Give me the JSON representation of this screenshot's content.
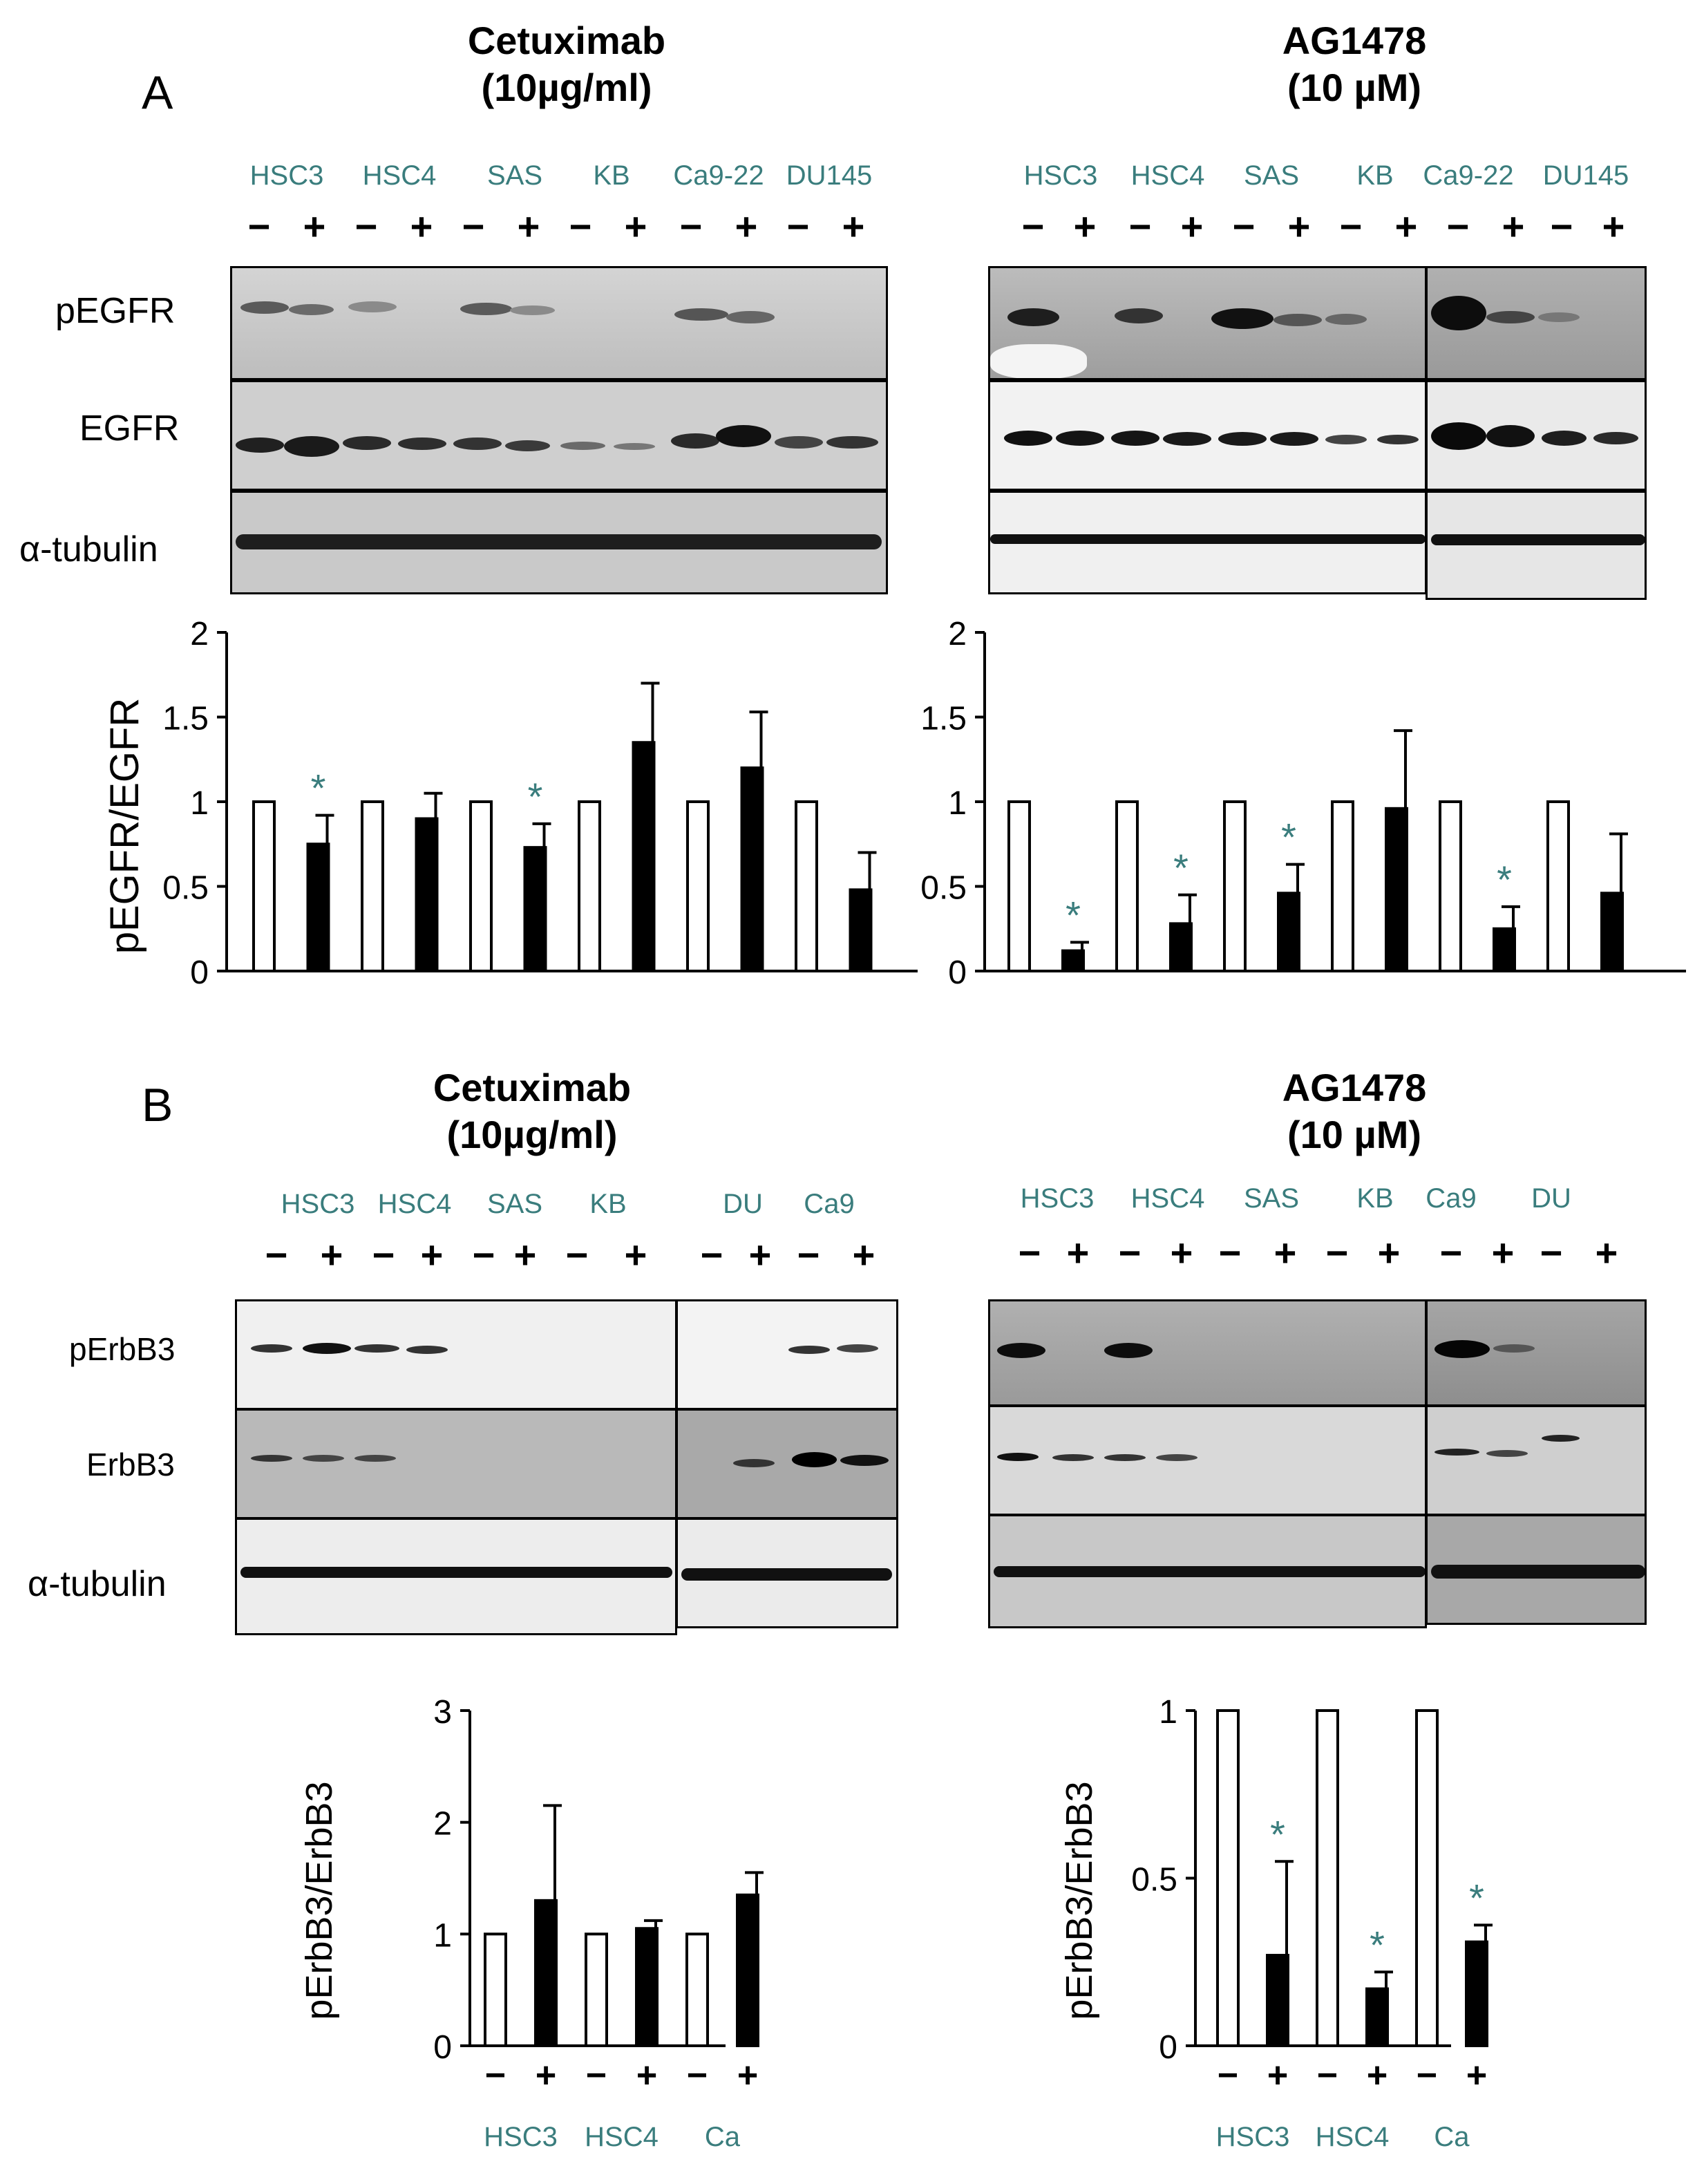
{
  "panelA": {
    "letter": "A",
    "left": {
      "title1": "Cetuximab",
      "title2": "(10µg/ml)",
      "lanes": [
        "HSC3",
        "HSC4",
        "SAS",
        "KB",
        "Ca9-22",
        "DU145"
      ],
      "blots": [
        "pEGFR",
        "EGFR",
        "α-tubulin"
      ]
    },
    "right": {
      "title1": "AG1478",
      "title2": "(10 µM)",
      "lanes": [
        "HSC3",
        "HSC4",
        "SAS",
        "KB",
        "Ca9-22",
        "DU145"
      ]
    }
  },
  "panelB": {
    "letter": "B",
    "left": {
      "title1": "Cetuximab",
      "title2": "(10µg/ml)",
      "lanes": [
        "HSC3",
        "HSC4",
        "SAS",
        "KB",
        "DU",
        "Ca9"
      ],
      "blots": [
        "pErbB3",
        "ErbB3",
        "α-tubulin"
      ]
    },
    "right": {
      "title1": "AG1478",
      "title2": "(10 µM)",
      "lanes": [
        "HSC3",
        "HSC4",
        "SAS",
        "KB",
        "Ca9",
        "DU"
      ]
    }
  },
  "signs": {
    "minus": "−",
    "plus": "+"
  },
  "chart_data": [
    {
      "type": "bar",
      "panel": "A-Cetuximab",
      "ylabel": "pEGFR/EGFR",
      "ylim": [
        0,
        2
      ],
      "yticks": [
        "0",
        "0.5",
        "1",
        "1.5",
        "2"
      ],
      "bars": [
        {
          "value": 1.0,
          "fill": "white"
        },
        {
          "value": 0.75,
          "fill": "black",
          "err": 0.17,
          "star": "*"
        },
        {
          "value": 1.0,
          "fill": "white"
        },
        {
          "value": 0.9,
          "fill": "black",
          "err": 0.15
        },
        {
          "value": 1.0,
          "fill": "white"
        },
        {
          "value": 0.73,
          "fill": "black",
          "err": 0.14,
          "star": "*"
        },
        {
          "value": 1.0,
          "fill": "white"
        },
        {
          "value": 1.35,
          "fill": "black",
          "err": 0.35
        },
        {
          "value": 1.0,
          "fill": "white"
        },
        {
          "value": 1.2,
          "fill": "black",
          "err": 0.33
        },
        {
          "value": 1.0,
          "fill": "white"
        },
        {
          "value": 0.48,
          "fill": "black",
          "err": 0.22
        }
      ]
    },
    {
      "type": "bar",
      "panel": "A-AG1478",
      "ylim": [
        0,
        2
      ],
      "yticks": [
        "0",
        "0.5",
        "1",
        "1.5",
        "2"
      ],
      "bars": [
        {
          "value": 1.0,
          "fill": "white"
        },
        {
          "value": 0.12,
          "fill": "black",
          "err": 0.05,
          "star": "*"
        },
        {
          "value": 1.0,
          "fill": "white"
        },
        {
          "value": 0.28,
          "fill": "black",
          "err": 0.17,
          "star": "*"
        },
        {
          "value": 1.0,
          "fill": "white"
        },
        {
          "value": 0.46,
          "fill": "black",
          "err": 0.17,
          "star": "*"
        },
        {
          "value": 1.0,
          "fill": "white"
        },
        {
          "value": 0.96,
          "fill": "black",
          "err": 0.46
        },
        {
          "value": 1.0,
          "fill": "white"
        },
        {
          "value": 0.25,
          "fill": "black",
          "err": 0.13,
          "star": "*"
        },
        {
          "value": 1.0,
          "fill": "white"
        },
        {
          "value": 0.46,
          "fill": "black",
          "err": 0.35
        }
      ]
    },
    {
      "type": "bar",
      "panel": "B-Cetuximab",
      "ylabel": "pErbB3/ErbB3",
      "ylim": [
        0,
        3
      ],
      "yticks": [
        "0",
        "1",
        "2",
        "3"
      ],
      "categories": [
        "HSC3",
        "HSC4",
        "Ca"
      ],
      "bars": [
        {
          "value": 1.0,
          "fill": "white"
        },
        {
          "value": 1.3,
          "fill": "black",
          "err": 0.85
        },
        {
          "value": 1.0,
          "fill": "white"
        },
        {
          "value": 1.05,
          "fill": "black",
          "err": 0.07
        },
        {
          "value": 1.0,
          "fill": "white"
        },
        {
          "value": 1.35,
          "fill": "black",
          "err": 0.2
        }
      ]
    },
    {
      "type": "bar",
      "panel": "B-AG1478",
      "ylabel": "pErbB3/ErbB3",
      "ylim": [
        0,
        1
      ],
      "yticks": [
        "0",
        "0.5",
        "1"
      ],
      "categories": [
        "HSC3",
        "HSC4",
        "Ca"
      ],
      "bars": [
        {
          "value": 1.0,
          "fill": "white"
        },
        {
          "value": 0.27,
          "fill": "black",
          "err": 0.28,
          "star": "*"
        },
        {
          "value": 1.0,
          "fill": "white"
        },
        {
          "value": 0.17,
          "fill": "black",
          "err": 0.05,
          "star": "*"
        },
        {
          "value": 1.0,
          "fill": "white"
        },
        {
          "value": 0.31,
          "fill": "black",
          "err": 0.05,
          "star": "*"
        }
      ]
    }
  ]
}
